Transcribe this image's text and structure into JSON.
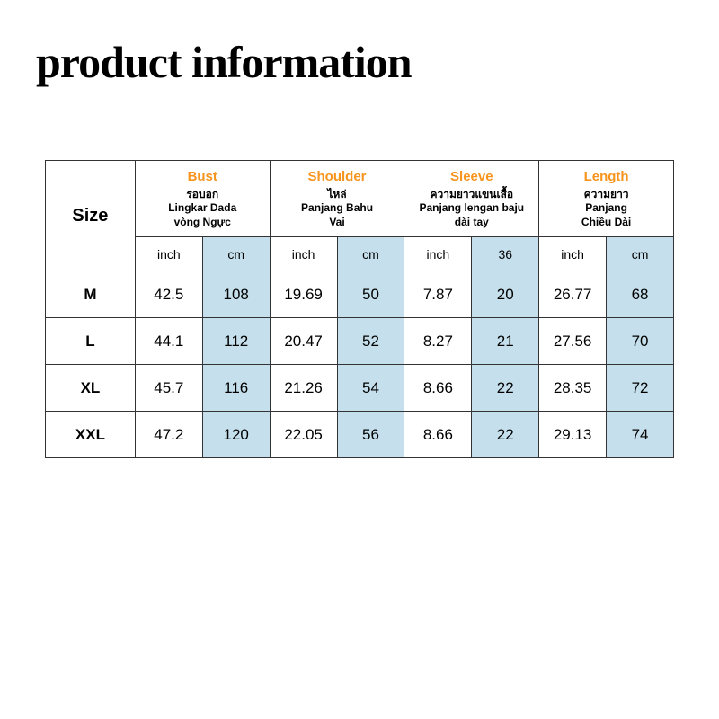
{
  "title": "product information",
  "sizeChart": {
    "type": "table",
    "sizeLabel": "Size",
    "columns": [
      {
        "name": "Bust",
        "sub1": "รอบอก",
        "sub2": "Lingkar Dada",
        "sub3": "vòng Ngực",
        "unit1": "inch",
        "unit2": "cm"
      },
      {
        "name": "Shoulder",
        "sub1": "ไหล่",
        "sub2": "Panjang Bahu",
        "sub3": "Vai",
        "unit1": "inch",
        "unit2": "cm"
      },
      {
        "name": "Sleeve",
        "sub1": "ความยาวแขนเสื้อ",
        "sub2": "Panjang lengan baju",
        "sub3": "dài tay",
        "unit1": "inch",
        "unit2": "36"
      },
      {
        "name": "Length",
        "sub1": "ความยาว",
        "sub2": "Panjang",
        "sub3": "Chiều Dài",
        "unit1": "inch",
        "unit2": "cm"
      }
    ],
    "rows": [
      {
        "size": "M",
        "v": [
          "42.5",
          "108",
          "19.69",
          "50",
          "7.87",
          "20",
          "26.77",
          "68"
        ]
      },
      {
        "size": "L",
        "v": [
          "44.1",
          "112",
          "20.47",
          "52",
          "8.27",
          "21",
          "27.56",
          "70"
        ]
      },
      {
        "size": "XL",
        "v": [
          "45.7",
          "116",
          "21.26",
          "54",
          "8.66",
          "22",
          "28.35",
          "72"
        ]
      },
      {
        "size": "XXL",
        "v": [
          "47.2",
          "120",
          "22.05",
          "56",
          "8.66",
          "22",
          "29.13",
          "74"
        ]
      }
    ],
    "highlightColumns": [
      1,
      3,
      5,
      7
    ],
    "colors": {
      "background": "#ffffff",
      "border": "#333333",
      "text": "#000000",
      "accent": "#f7941d",
      "highlight": "#c5e0ec"
    }
  }
}
